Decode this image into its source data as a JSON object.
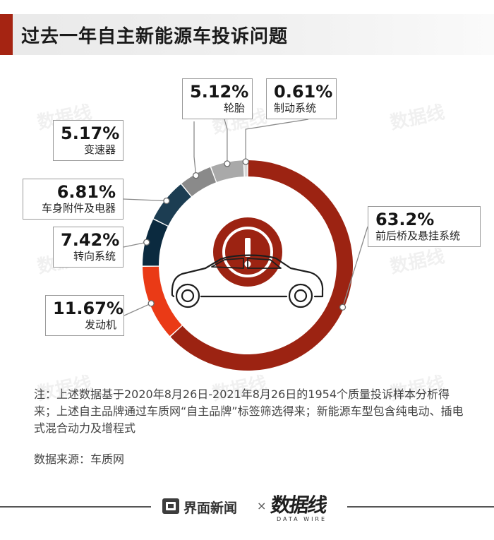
{
  "title": "过去一年自主新能源车投诉问题",
  "chart_data": {
    "type": "pie",
    "donut": true,
    "segments": [
      {
        "label": "前后桥及悬挂系统",
        "value": 63.2,
        "display": "63.2%",
        "color": "#9c2312"
      },
      {
        "label": "发动机",
        "value": 11.67,
        "display": "11.67%",
        "color": "#ea3a16"
      },
      {
        "label": "转向系统",
        "value": 7.42,
        "display": "7.42%",
        "color": "#0b2a3f"
      },
      {
        "label": "车身附件及电器",
        "value": 6.81,
        "display": "6.81%",
        "color": "#1c3d52"
      },
      {
        "label": "变速器",
        "value": 5.17,
        "display": "5.17%",
        "color": "#8a8a8a"
      },
      {
        "label": "轮胎",
        "value": 5.12,
        "display": "5.12%",
        "color": "#a9a9a9"
      },
      {
        "label": "制动系统",
        "value": 0.61,
        "display": "0.61%",
        "color": "#d8d8d8"
      }
    ],
    "center_icon": "car-warning-icon",
    "center_color": "#9c2312"
  },
  "note": "注：上述数据基于2020年8月26日-2021年8月26日的1954个质量投诉样本分析得来；上述自主品牌通过车质网“自主品牌”标签筛选得来；新能源车型包含纯电动、插电式混合动力及增程式",
  "source": "数据来源：车质网",
  "footer": {
    "brand": "界面新闻",
    "separator": "×",
    "partner": "数据线",
    "partner_sub": "DATA WIRE"
  },
  "watermark_text": "数据线"
}
